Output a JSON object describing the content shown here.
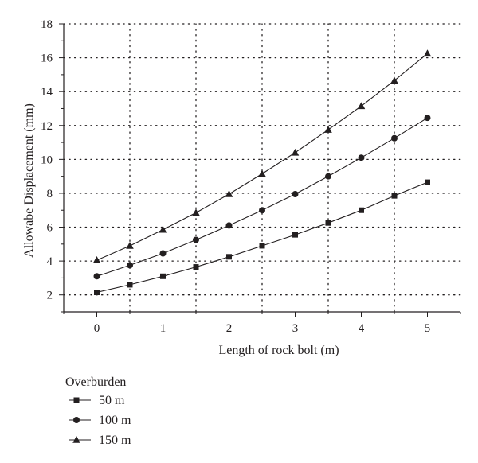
{
  "chart_data": {
    "type": "line",
    "title": "",
    "xlabel": "Length of rock bolt (m)",
    "ylabel": "Allowabe Displacement (mm)",
    "xlim": [
      -0.5,
      5.5
    ],
    "ylim": [
      1,
      18
    ],
    "x_ticks": [
      0,
      1,
      2,
      3,
      4,
      5
    ],
    "y_ticks": [
      2,
      4,
      6,
      8,
      10,
      12,
      14,
      16,
      18
    ],
    "grid": "dotted",
    "x": [
      0,
      0.5,
      1,
      1.5,
      2,
      2.5,
      3,
      3.5,
      4,
      4.5,
      5
    ],
    "series": [
      {
        "name": "50 m",
        "marker": "square",
        "values": [
          2.15,
          2.6,
          3.1,
          3.65,
          4.25,
          4.9,
          5.55,
          6.25,
          7.0,
          7.85,
          8.65
        ]
      },
      {
        "name": "100 m",
        "marker": "circle",
        "values": [
          3.1,
          3.75,
          4.45,
          5.25,
          6.1,
          7.0,
          7.95,
          9.0,
          10.1,
          11.25,
          12.45
        ]
      },
      {
        "name": "150 m",
        "marker": "triangle",
        "values": [
          4.05,
          4.9,
          5.85,
          6.85,
          7.95,
          9.15,
          10.4,
          11.75,
          13.15,
          14.65,
          16.25
        ]
      }
    ],
    "legend": {
      "title": "Overburden",
      "position": "bottom-left"
    },
    "colors": {
      "line": "#231f20",
      "grid": "#231f20",
      "background": "#ffffff"
    }
  }
}
